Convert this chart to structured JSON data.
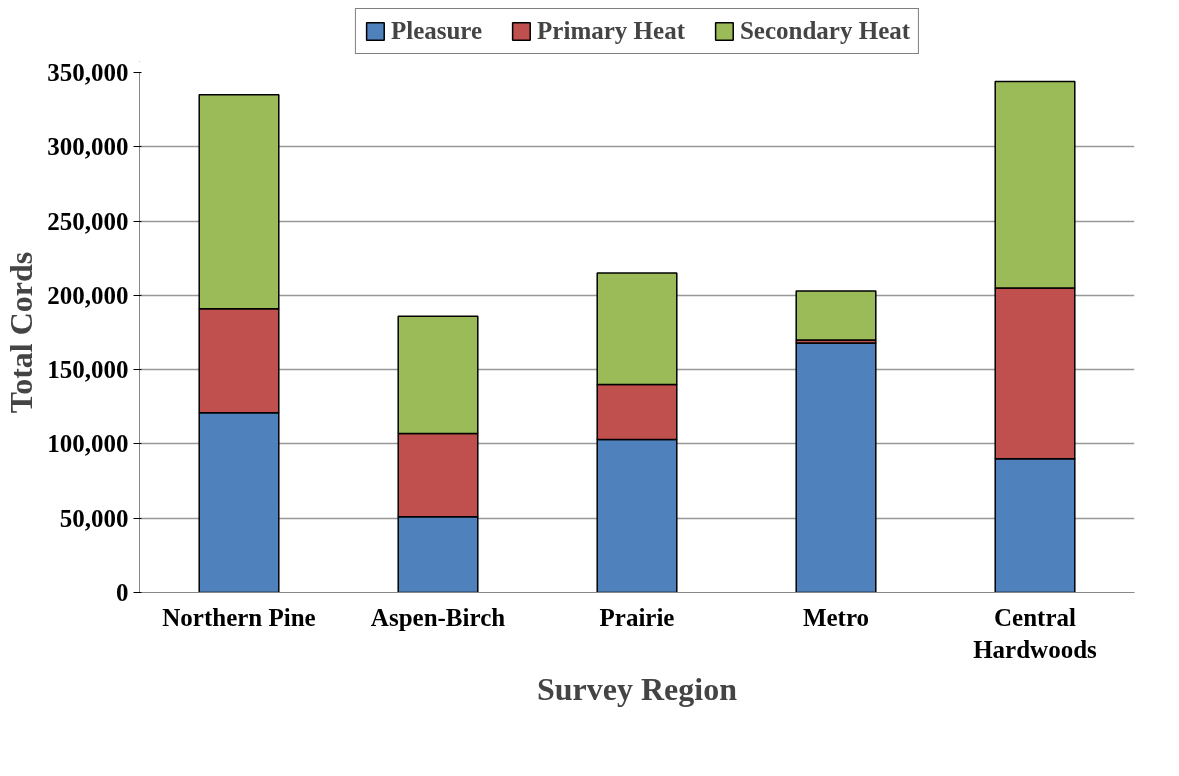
{
  "chart_data": {
    "type": "bar",
    "stacked": true,
    "xlabel": "Survey Region",
    "ylabel": "Total Cords",
    "categories": [
      "Northern Pine",
      "Aspen-Birch",
      "Prairie",
      "Metro",
      "Central Hardwoods"
    ],
    "series": [
      {
        "name": "Pleasure",
        "color": "#4f81bd",
        "values": [
          121000,
          51000,
          103000,
          168000,
          90000
        ]
      },
      {
        "name": "Primary Heat",
        "color": "#c0504d",
        "values": [
          70000,
          56000,
          37000,
          2000,
          115000
        ]
      },
      {
        "name": "Secondary Heat",
        "color": "#9bbb59",
        "values": [
          144000,
          79000,
          75000,
          33000,
          139000
        ]
      }
    ],
    "ylim": [
      0,
      350000
    ],
    "yticks": [
      0,
      {
        "value": 50000,
        "label": "50,000"
      },
      {
        "value": 100000,
        "label": "100,000"
      },
      {
        "value": 150000,
        "label": "150,000"
      },
      {
        "value": 200000,
        "label": "200,000"
      },
      {
        "value": 250000,
        "label": "250,000"
      },
      {
        "value": 300000,
        "label": "300,000"
      },
      {
        "value": 350000,
        "label": "350,000"
      }
    ],
    "grid": "y",
    "legend": "top"
  }
}
